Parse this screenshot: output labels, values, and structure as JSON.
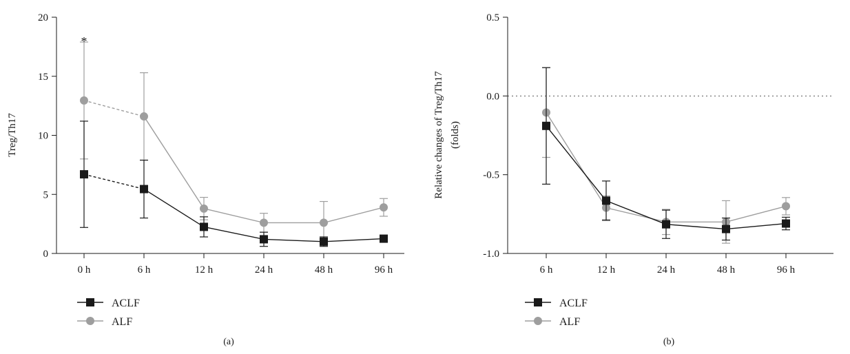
{
  "chart_data": [
    {
      "type": "line",
      "panel_label": "(a)",
      "ylabel": "Treg/Th17",
      "xlabel": "",
      "categories": [
        "0 h",
        "6 h",
        "12 h",
        "24 h",
        "48 h",
        "96 h"
      ],
      "ylim": [
        0,
        20
      ],
      "yticks": [
        0,
        5,
        10,
        15,
        20
      ],
      "grid": false,
      "legend_position": "bottom-left",
      "series": [
        {
          "name": "ACLF",
          "color": "#1a1a1a",
          "marker": "square",
          "values": [
            6.7,
            5.45,
            2.25,
            1.2,
            1.0,
            1.25
          ],
          "error": [
            4.5,
            2.45,
            0.85,
            0.6,
            0.4,
            0.2
          ],
          "dashed_segments": [
            0
          ]
        },
        {
          "name": "ALF",
          "color": "#9e9e9e",
          "marker": "circle",
          "values": [
            12.95,
            11.6,
            3.8,
            2.6,
            2.6,
            3.9
          ],
          "error": [
            4.95,
            3.7,
            0.95,
            0.8,
            1.8,
            0.75
          ],
          "dashed_segments": [
            0
          ]
        }
      ],
      "annotations": [
        {
          "text": "*",
          "category": "0 h",
          "y": 18.2
        }
      ]
    },
    {
      "type": "line",
      "panel_label": "(b)",
      "ylabel": "Relative changes of Treg/Th17",
      "ylabel2": "(folds)",
      "xlabel": "",
      "categories": [
        "6 h",
        "12 h",
        "24 h",
        "48 h",
        "96 h"
      ],
      "ylim": [
        -1.0,
        0.5
      ],
      "yticks": [
        -1.0,
        -0.5,
        0.0,
        0.5
      ],
      "reference_line": 0.0,
      "grid": false,
      "legend_position": "bottom-left",
      "series": [
        {
          "name": "ACLF",
          "color": "#1a1a1a",
          "marker": "square",
          "values": [
            -0.19,
            -0.665,
            -0.815,
            -0.845,
            -0.81
          ],
          "error": [
            0.37,
            0.125,
            0.09,
            0.07,
            0.04
          ]
        },
        {
          "name": "ALF",
          "color": "#9e9e9e",
          "marker": "circle",
          "values": [
            -0.105,
            -0.71,
            -0.8,
            -0.8,
            -0.7
          ],
          "error": [
            0.285,
            0.075,
            0.08,
            0.135,
            0.055
          ]
        }
      ]
    }
  ]
}
